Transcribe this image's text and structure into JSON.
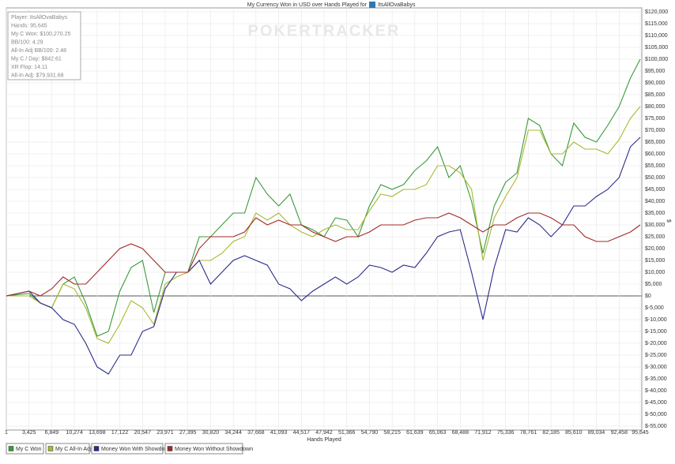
{
  "chart_data": {
    "type": "line",
    "title": "My Currency Won in USD over Hands Played for",
    "player": "ItsAllOvaBabys",
    "watermark": "POKERTRACKER",
    "x_label": "Hands Played",
    "y_label": "$",
    "stats": [
      "Player: ItsAllOvaBabys",
      "Hands: 95,645",
      "My C Won: $100,270.25",
      "BB/100: 4.29",
      "All-In Adj BB/100: 2.48",
      "My C / Day: $842.61",
      "XR Flop: 14.11",
      "All-In Adj: $79,931.68"
    ],
    "grid": true,
    "x": [
      1,
      3425,
      5137,
      6849,
      8561,
      10274,
      11986,
      13698,
      15410,
      17122,
      18835,
      20547,
      22259,
      23971,
      25683,
      27395,
      29108,
      30820,
      32532,
      34244,
      35956,
      37668,
      39380,
      41093,
      42805,
      44517,
      46229,
      47942,
      49654,
      51366,
      53078,
      54790,
      56502,
      58215,
      59927,
      61639,
      63351,
      65063,
      66775,
      68488,
      70200,
      71912,
      73624,
      75336,
      77048,
      78761,
      80473,
      82185,
      83897,
      85610,
      87322,
      89034,
      90746,
      92458,
      94170,
      95645
    ],
    "series": [
      {
        "name": "My C Won",
        "color": "#3a9a3a",
        "values": [
          0,
          1000,
          -3000,
          -5000,
          5000,
          8000,
          -3000,
          -17000,
          -15000,
          2000,
          12000,
          15000,
          -7000,
          10000,
          10000,
          10000,
          25000,
          25000,
          30000,
          35000,
          35000,
          50000,
          43000,
          38000,
          43000,
          30000,
          28000,
          25000,
          33000,
          32000,
          25000,
          38000,
          47000,
          45000,
          47000,
          53000,
          57000,
          63000,
          50000,
          55000,
          40000,
          18000,
          38000,
          48000,
          52000,
          75000,
          72000,
          60000,
          55000,
          73000,
          67000,
          65000,
          72000,
          80000,
          92000,
          100000
        ]
      },
      {
        "name": "My C All-In Adj",
        "color": "#a8b830",
        "values": [
          0,
          0,
          -3000,
          -5000,
          5000,
          3000,
          -5000,
          -18000,
          -20000,
          -12000,
          -2000,
          -5000,
          -12000,
          5000,
          8000,
          10000,
          15000,
          15000,
          18000,
          23000,
          25000,
          35000,
          32000,
          35000,
          30000,
          27000,
          25000,
          28000,
          30000,
          28000,
          28000,
          36000,
          43000,
          42000,
          45000,
          45000,
          47000,
          55000,
          55000,
          52000,
          45000,
          15000,
          33000,
          42000,
          50000,
          70000,
          70000,
          60000,
          60000,
          65000,
          62000,
          62000,
          60000,
          66000,
          75000,
          80000
        ]
      },
      {
        "name": "Money Won With Showdown",
        "color": "#2a2a8a",
        "values": [
          0,
          2000,
          -3000,
          -5000,
          -10000,
          -12000,
          -20000,
          -30000,
          -33000,
          -25000,
          -25000,
          -15000,
          -13000,
          3000,
          10000,
          10000,
          15000,
          5000,
          10000,
          15000,
          17000,
          15000,
          13000,
          5000,
          3000,
          -2000,
          2000,
          5000,
          8000,
          5000,
          8000,
          13000,
          12000,
          10000,
          13000,
          12000,
          18000,
          25000,
          27000,
          28000,
          10000,
          -10000,
          12000,
          28000,
          27000,
          33000,
          30000,
          25000,
          30000,
          38000,
          38000,
          42000,
          45000,
          50000,
          63000,
          67000
        ]
      },
      {
        "name": "Money Won Without Showdown",
        "color": "#a02828",
        "values": [
          0,
          2000,
          0,
          3000,
          8000,
          5000,
          5000,
          10000,
          15000,
          20000,
          22000,
          20000,
          15000,
          10000,
          10000,
          10000,
          20000,
          25000,
          25000,
          25000,
          27000,
          33000,
          30000,
          32000,
          30000,
          30000,
          27000,
          25000,
          23000,
          25000,
          25000,
          27000,
          30000,
          30000,
          30000,
          32000,
          33000,
          33000,
          35000,
          33000,
          30000,
          27000,
          30000,
          30000,
          33000,
          35000,
          35000,
          33000,
          30000,
          30000,
          25000,
          23000,
          23000,
          25000,
          27000,
          30000
        ]
      }
    ],
    "xlim": [
      1,
      95645
    ],
    "xticks": [
      1,
      {
        "value": 3425,
        "label": "3,425"
      },
      {
        "value": 6849,
        "label": "6,849"
      },
      {
        "value": 10274,
        "label": "10,274"
      },
      {
        "value": 13698,
        "label": "13,698"
      },
      {
        "value": 17122,
        "label": "17,122"
      },
      {
        "value": 20547,
        "label": "20,547"
      },
      {
        "value": 23971,
        "label": "23,971"
      },
      {
        "value": 27395,
        "label": "27,395"
      },
      {
        "value": 30820,
        "label": "30,820"
      },
      {
        "value": 34244,
        "label": "34,244"
      },
      {
        "value": 37668,
        "label": "37,668"
      },
      {
        "value": 41093,
        "label": "41,093"
      },
      {
        "value": 44517,
        "label": "44,517"
      },
      {
        "value": 47942,
        "label": "47,942"
      },
      {
        "value": 51366,
        "label": "51,366"
      },
      {
        "value": 54790,
        "label": "54,790"
      },
      {
        "value": 58215,
        "label": "58,215"
      },
      {
        "value": 61639,
        "label": "61,639"
      },
      {
        "value": 65063,
        "label": "65,063"
      },
      {
        "value": 68488,
        "label": "68,488"
      },
      {
        "value": 71912,
        "label": "71,912"
      },
      {
        "value": 75336,
        "label": "75,336"
      },
      {
        "value": 78761,
        "label": "78,761"
      },
      {
        "value": 82185,
        "label": "82,185"
      },
      {
        "value": 85610,
        "label": "85,610"
      },
      {
        "value": 89034,
        "label": "89,034"
      },
      {
        "value": 92458,
        "label": "92,458"
      },
      {
        "value": 95645,
        "label": "95,645"
      }
    ],
    "ylim": [
      -55000,
      120000
    ],
    "yticks": [
      {
        "value": 120000,
        "label": "$120,000"
      },
      {
        "value": 115000,
        "label": "$115,000"
      },
      {
        "value": 110000,
        "label": "$110,000"
      },
      {
        "value": 105000,
        "label": "$105,000"
      },
      {
        "value": 100000,
        "label": "$100,000"
      },
      {
        "value": 95000,
        "label": "$95,000"
      },
      {
        "value": 90000,
        "label": "$90,000"
      },
      {
        "value": 85000,
        "label": "$85,000"
      },
      {
        "value": 80000,
        "label": "$80,000"
      },
      {
        "value": 75000,
        "label": "$75,000"
      },
      {
        "value": 70000,
        "label": "$70,000"
      },
      {
        "value": 65000,
        "label": "$65,000"
      },
      {
        "value": 60000,
        "label": "$60,000"
      },
      {
        "value": 55000,
        "label": "$55,000"
      },
      {
        "value": 50000,
        "label": "$50,000"
      },
      {
        "value": 45000,
        "label": "$45,000"
      },
      {
        "value": 40000,
        "label": "$40,000"
      },
      {
        "value": 35000,
        "label": "$35,000"
      },
      {
        "value": 30000,
        "label": "$30,000"
      },
      {
        "value": 25000,
        "label": "$25,000"
      },
      {
        "value": 20000,
        "label": "$20,000"
      },
      {
        "value": 15000,
        "label": "$15,000"
      },
      {
        "value": 10000,
        "label": "$10,000"
      },
      {
        "value": 5000,
        "label": "$5,000"
      },
      {
        "value": 0,
        "label": "$0"
      },
      {
        "value": -5000,
        "label": "$-5,000"
      },
      {
        "value": -10000,
        "label": "$-10,000"
      },
      {
        "value": -15000,
        "label": "$-15,000"
      },
      {
        "value": -20000,
        "label": "$-20,000"
      },
      {
        "value": -25000,
        "label": "$-25,000"
      },
      {
        "value": -30000,
        "label": "$-30,000"
      },
      {
        "value": -35000,
        "label": "$-35,000"
      },
      {
        "value": -40000,
        "label": "$-40,000"
      },
      {
        "value": -45000,
        "label": "$-45,000"
      },
      {
        "value": -50000,
        "label": "$-50,000"
      },
      {
        "value": -55000,
        "label": "$-55,000"
      }
    ]
  }
}
